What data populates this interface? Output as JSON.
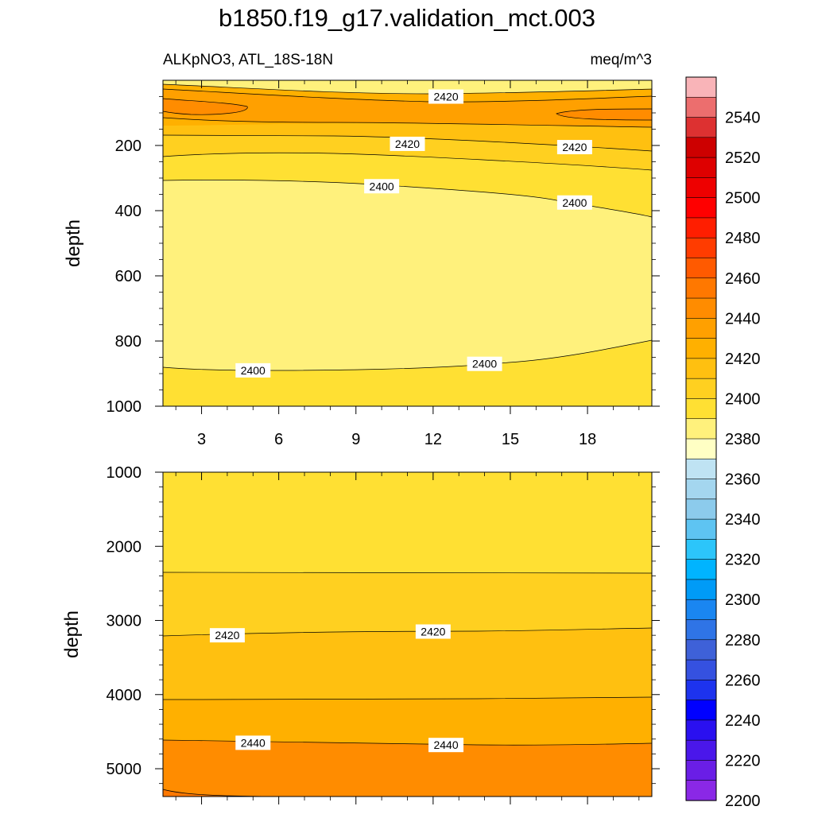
{
  "title": "b1850.f19_g17.validation_mct.003",
  "left_label": "ALKpNO3, ATL_18S-18N",
  "right_label": "meq/m^3",
  "chart_data": [
    {
      "type": "contour",
      "panel": "upper",
      "ylabel": "depth",
      "xlabel": "",
      "x_ticks": [
        "3",
        "6",
        "9",
        "12",
        "15",
        "18"
      ],
      "x_tick_values": [
        3,
        6,
        9,
        12,
        15,
        18
      ],
      "xlim": [
        1.5,
        20.5
      ],
      "y_ticks": [
        "200",
        "400",
        "600",
        "800",
        "1000"
      ],
      "y_tick_values": [
        200,
        400,
        600,
        800,
        1000
      ],
      "ylim": [
        1000,
        0
      ],
      "y_reversed": true,
      "contour_labels": [
        {
          "text": "2420",
          "x": 12.5,
          "y": 50
        },
        {
          "text": "2420",
          "x": 11,
          "y": 195
        },
        {
          "text": "2420",
          "x": 17.5,
          "y": 205
        },
        {
          "text": "2400",
          "x": 10,
          "y": 325
        },
        {
          "text": "2400",
          "x": 17.5,
          "y": 375
        },
        {
          "text": "2400",
          "x": 5,
          "y": 890
        },
        {
          "text": "2400",
          "x": 14,
          "y": 870
        }
      ]
    },
    {
      "type": "contour",
      "panel": "lower",
      "ylabel": "depth",
      "xlabel": "",
      "y_ticks": [
        "1000",
        "2000",
        "3000",
        "4000",
        "5000"
      ],
      "y_tick_values": [
        1000,
        2000,
        3000,
        4000,
        5000
      ],
      "ylim": [
        5375,
        1000
      ],
      "y_reversed": true,
      "contour_labels": [
        {
          "text": "2420",
          "x": 4,
          "y": 3200
        },
        {
          "text": "2420",
          "x": 12,
          "y": 3150
        },
        {
          "text": "2440",
          "x": 5,
          "y": 4650
        },
        {
          "text": "2440",
          "x": 12.5,
          "y": 4680
        }
      ]
    }
  ],
  "colorbar": {
    "labels": [
      "2540",
      "2520",
      "2500",
      "2480",
      "2460",
      "2440",
      "2420",
      "2400",
      "2380",
      "2360",
      "2340",
      "2320",
      "2300",
      "2280",
      "2260",
      "2240",
      "2220",
      "2200"
    ],
    "colors": [
      "#f9b4b8",
      "#ec6e6e",
      "#dd3131",
      "#cd0000",
      "#de0000",
      "#ee0000",
      "#ff0000",
      "#ff1e00",
      "#ff3c00",
      "#ff5a00",
      "#ff7800",
      "#ff8c00",
      "#ffa000",
      "#ffb000",
      "#ffc010",
      "#ffd020",
      "#ffe033",
      "#fff17c",
      "#ffffc4",
      "#bfe3f3",
      "#a4d6ef",
      "#8ccbec",
      "#5ec4f2",
      "#2cc5fa",
      "#00b4ff",
      "#009bf7",
      "#1a86f1",
      "#2f74e6",
      "#3e61d8",
      "#3551e0",
      "#1d33ee",
      "#0000ff",
      "#2a10f0",
      "#4a17ea",
      "#6a1ee6",
      "#8a28e6"
    ]
  }
}
